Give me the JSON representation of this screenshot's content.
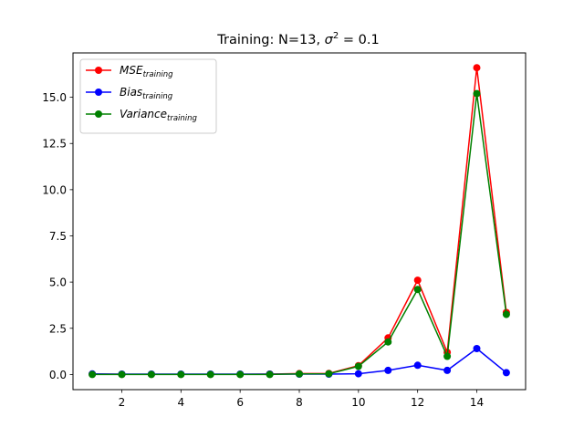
{
  "chart_data": {
    "type": "line",
    "title": "Training: N=13, σ² = 0.1",
    "title_parts": {
      "prefix": "Training: N=13, ",
      "sigma": "σ",
      "sup": "2",
      "suffix": " = 0.1"
    },
    "xlabel": "",
    "ylabel": "",
    "xlim": [
      0.35,
      15.65
    ],
    "ylim": [
      -0.82,
      17.4
    ],
    "x_ticks": [
      2,
      4,
      6,
      8,
      10,
      12,
      14
    ],
    "y_ticks": [
      0.0,
      2.5,
      5.0,
      7.5,
      10.0,
      12.5,
      15.0
    ],
    "y_tick_labels": [
      "0.0",
      "2.5",
      "5.0",
      "7.5",
      "10.0",
      "12.5",
      "15.0"
    ],
    "grid": false,
    "legend_position": "top-left",
    "x": [
      1,
      2,
      3,
      4,
      5,
      6,
      7,
      8,
      9,
      10,
      11,
      12,
      13,
      14,
      15
    ],
    "series": [
      {
        "name": "MSE",
        "name_sub": "training",
        "color": "#ff0000",
        "values": [
          0.02,
          0.01,
          0.01,
          0.01,
          0.01,
          0.01,
          0.02,
          0.05,
          0.06,
          0.48,
          1.98,
          5.1,
          1.2,
          16.6,
          3.35
        ]
      },
      {
        "name": "Bias",
        "name_sub": "training",
        "color": "#0000ff",
        "values": [
          0.03,
          0.02,
          0.02,
          0.02,
          0.02,
          0.02,
          0.02,
          0.02,
          0.02,
          0.04,
          0.22,
          0.5,
          0.22,
          1.4,
          0.1
        ]
      },
      {
        "name": "Variance",
        "name_sub": "training",
        "color": "#008000",
        "values": [
          0.0,
          0.0,
          0.0,
          0.0,
          0.0,
          0.0,
          0.0,
          0.03,
          0.04,
          0.44,
          1.76,
          4.6,
          0.98,
          15.2,
          3.25
        ]
      }
    ]
  }
}
